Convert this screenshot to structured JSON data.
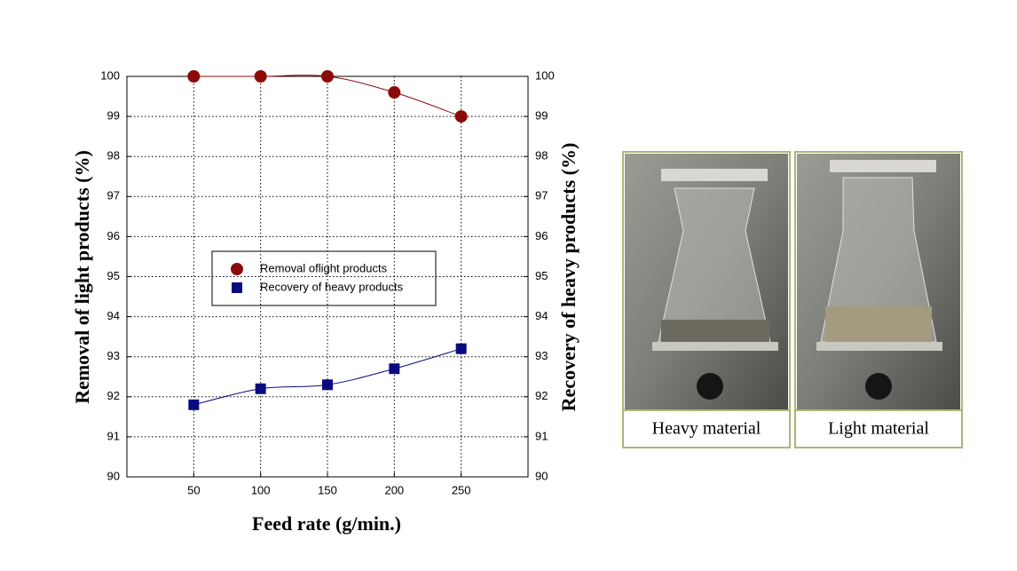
{
  "chart_data": {
    "type": "line",
    "x_label": "Feed rate (g/min.)",
    "y_label": "Removal of light products (%)",
    "y2_label": "Recovery of heavy products (%)",
    "x": [
      50,
      100,
      150,
      200,
      250
    ],
    "xlim": [
      0,
      300
    ],
    "xticks": [
      50,
      100,
      150,
      200,
      250
    ],
    "ylim": [
      90,
      100
    ],
    "yticks": [
      90,
      91,
      92,
      93,
      94,
      95,
      96,
      97,
      98,
      99,
      100
    ],
    "y2lim": [
      90,
      100
    ],
    "y2ticks": [
      90,
      91,
      92,
      93,
      94,
      95,
      96,
      97,
      98,
      99,
      100
    ],
    "grid": true,
    "smooth": true,
    "series": [
      {
        "name": "Removal oflight products",
        "color": "#8b0a0a",
        "marker": "circle",
        "values": [
          100,
          100,
          100,
          99.6,
          99
        ]
      },
      {
        "name": "Recovery of heavy products",
        "color": "#0a0a80",
        "marker": "square",
        "axis": "y2",
        "values": [
          91.8,
          92.2,
          92.3,
          92.7,
          93.2
        ]
      }
    ]
  },
  "photos": [
    {
      "caption": "Heavy material"
    },
    {
      "caption": "Light material"
    }
  ]
}
